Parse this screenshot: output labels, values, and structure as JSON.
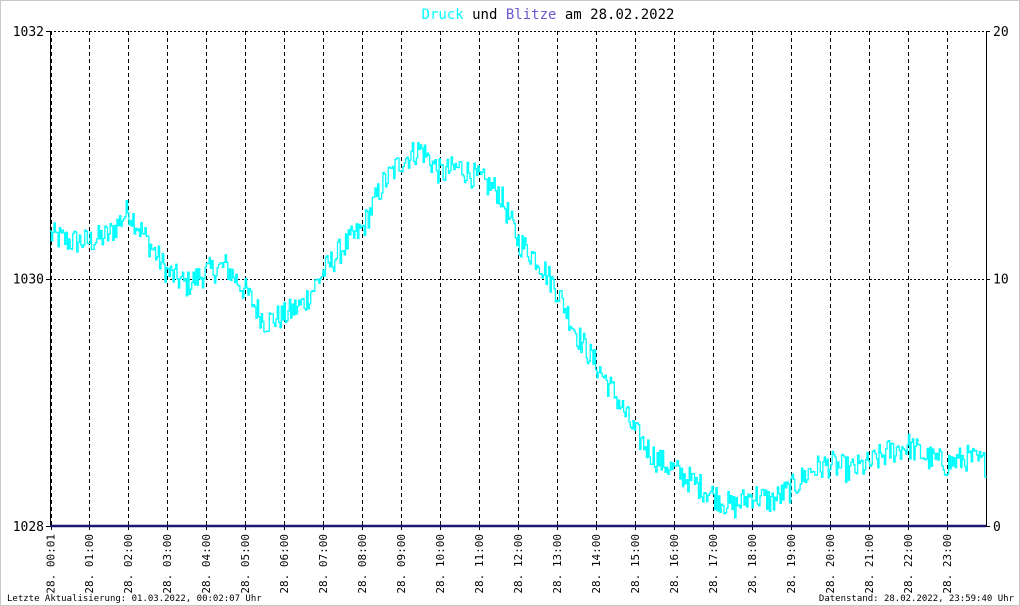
{
  "title": {
    "word1": "Druck",
    "word2": "und",
    "word3": "Blitze",
    "word4": "am 28.02.2022"
  },
  "colors": {
    "pressure": "#00ffff",
    "lightning": "#6a5acd",
    "baseline": "#191970",
    "text": "#000000",
    "grid": "#000000"
  },
  "footer": {
    "left": "Letzte Aktualisierung: 01.03.2022, 00:02:07 Uhr",
    "right": "Datenstand: 28.02.2022, 23:59:40 Uhr"
  },
  "chart_data": {
    "type": "line",
    "left_axis": {
      "ticks": [
        "1032",
        "1030",
        "1028"
      ],
      "ylim": [
        1028,
        1032
      ]
    },
    "right_axis": {
      "ticks": [
        "20",
        "10",
        "0"
      ],
      "ylim": [
        0,
        20
      ]
    },
    "x_tick_labels": [
      "28. 00:01",
      "28. 01:00",
      "28. 02:00",
      "28. 03:00",
      "28. 04:00",
      "28. 05:00",
      "28. 06:00",
      "28. 07:00",
      "28. 08:00",
      "28. 09:00",
      "28. 10:00",
      "28. 11:00",
      "28. 12:00",
      "28. 13:00",
      "28. 14:00",
      "28. 15:00",
      "28. 16:00",
      "28. 17:00",
      "28. 18:00",
      "28. 19:00",
      "28. 20:00",
      "28. 21:00",
      "28. 22:00",
      "28. 23:00"
    ],
    "x_tick_hours": [
      0.0167,
      1,
      2,
      3,
      4,
      5,
      6,
      7,
      8,
      9,
      10,
      11,
      12,
      13,
      14,
      15,
      16,
      17,
      18,
      19,
      20,
      21,
      22,
      23
    ],
    "xlim_hours": [
      0,
      24
    ],
    "grid": true,
    "series": [
      {
        "name": "Druck",
        "axis": "left",
        "x_hours": [
          0,
          0.5,
          1,
          1.5,
          2,
          2.5,
          3,
          3.5,
          4,
          4.5,
          5,
          5.5,
          6,
          6.5,
          7,
          7.5,
          8,
          8.5,
          9,
          9.5,
          10,
          10.5,
          11,
          11.5,
          12,
          12.5,
          13,
          13.5,
          14,
          14.5,
          15,
          15.5,
          16,
          16.5,
          17,
          17.5,
          18,
          18.5,
          19,
          19.5,
          20,
          20.5,
          21,
          21.5,
          22,
          22.5,
          23,
          23.5,
          24
        ],
        "values": [
          1030.35,
          1030.3,
          1030.3,
          1030.35,
          1030.55,
          1030.3,
          1030.05,
          1029.95,
          1030.05,
          1030.1,
          1029.9,
          1029.65,
          1029.7,
          1029.8,
          1030.05,
          1030.25,
          1030.4,
          1030.75,
          1030.95,
          1031.05,
          1030.85,
          1030.9,
          1030.8,
          1030.7,
          1030.3,
          1030.15,
          1029.9,
          1029.55,
          1029.3,
          1029.05,
          1028.75,
          1028.55,
          1028.45,
          1028.35,
          1028.25,
          1028.15,
          1028.25,
          1028.2,
          1028.3,
          1028.45,
          1028.5,
          1028.45,
          1028.5,
          1028.6,
          1028.65,
          1028.55,
          1028.5,
          1028.55,
          1028.5
        ]
      },
      {
        "name": "Blitze",
        "axis": "right",
        "x_hours": [
          0,
          24
        ],
        "values": [
          0,
          0
        ]
      }
    ]
  }
}
